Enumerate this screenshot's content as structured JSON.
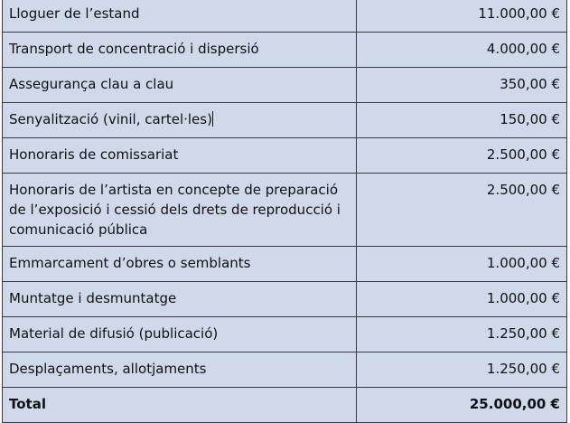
{
  "budget": {
    "rows": [
      {
        "concept": "Lloguer de l’estand",
        "amount": "11.000,00 €"
      },
      {
        "concept": "Transport de concentració i dispersió",
        "amount": "4.000,00 €"
      },
      {
        "concept": "Assegurança clau a clau",
        "amount": "350,00 €"
      },
      {
        "concept": "Senyalització (vinil, cartel·les)",
        "amount": "150,00 €"
      },
      {
        "concept": "Honoraris de comissariat",
        "amount": "2.500,00 €"
      },
      {
        "concept": "Honoraris de l’artista en concepte de preparació de l’exposició i cessió dels drets de reproducció i comunicació pública",
        "amount": "2.500,00 €"
      },
      {
        "concept": "Emmarcament d’obres o semblants",
        "amount": "1.000,00 €"
      },
      {
        "concept": "Muntatge i desmuntatge",
        "amount": "1.000,00 €"
      },
      {
        "concept": "Material de difusió (publicació)",
        "amount": "1.250,00 €"
      },
      {
        "concept": "Desplaçaments, allotjaments",
        "amount": "1.250,00 €"
      }
    ],
    "total": {
      "label": "Total",
      "amount": "25.000,00 €"
    }
  },
  "colors": {
    "cell_background": "#cfd9ea",
    "border": "#3a3a3a",
    "text": "#111111"
  }
}
